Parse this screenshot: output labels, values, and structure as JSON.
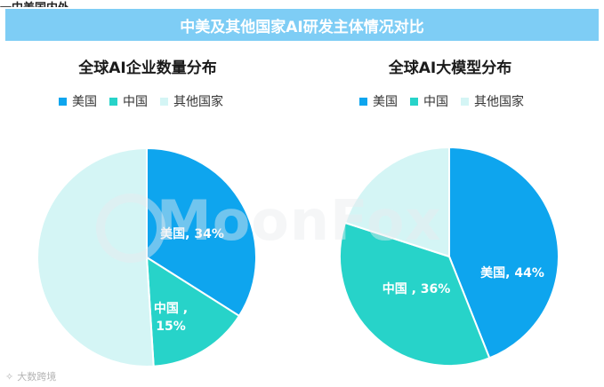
{
  "header": {
    "topcut": "一中美国内外",
    "banner": "中美及其他国家AI研发主体情况对比"
  },
  "colors": {
    "us": "#0ea5ee",
    "china": "#27d3c9",
    "other": "#d4f5f5",
    "banner": "#7ecdf5"
  },
  "watermark": "MoonFox",
  "footer": {
    "logo_text": "大数跨境",
    "icon": "brand-logo-icon"
  },
  "chart_data": [
    {
      "type": "pie",
      "title": "全球AI企业数量分布",
      "legend": [
        "美国",
        "中国",
        "其他国家"
      ],
      "legend_placement": "top",
      "slices": [
        {
          "name": "美国",
          "value": 34,
          "label": "美国, 34%"
        },
        {
          "name": "中国",
          "value": 15,
          "label_line1": "中国 ,",
          "label_line2": "15%"
        },
        {
          "name": "其他国家",
          "value": 51
        }
      ]
    },
    {
      "type": "pie",
      "title": "全球AI大模型分布",
      "legend": [
        "美国",
        "中国",
        "其他国家"
      ],
      "legend_placement": "top",
      "slices": [
        {
          "name": "美国",
          "value": 44,
          "label": "美国, 44%"
        },
        {
          "name": "中国",
          "value": 36,
          "label": "中国 , 36%"
        },
        {
          "name": "其他国家",
          "value": 20
        }
      ]
    }
  ]
}
